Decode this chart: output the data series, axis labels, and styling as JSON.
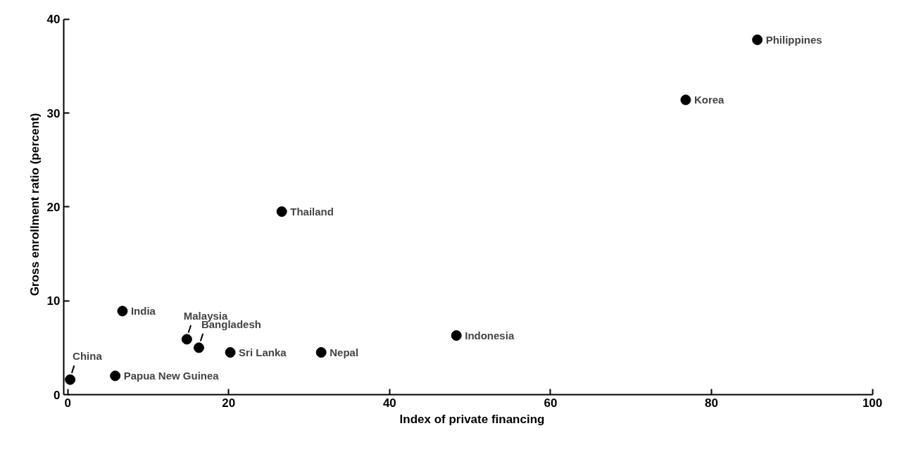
{
  "chart_data": {
    "type": "scatter",
    "xlabel": "Index of private financing",
    "ylabel": "Gross enrollment ratio (percent)",
    "x": [
      0.3,
      5.9,
      6.8,
      14.8,
      16.3,
      20.2,
      31.5,
      48.3,
      26.6,
      76.8,
      85.7
    ],
    "series": [
      {
        "color": "#000000",
        "values": [
          1.6,
          2.0,
          8.9,
          5.9,
          5.0,
          4.5,
          4.5,
          6.3,
          19.5,
          31.4,
          37.8
        ]
      }
    ],
    "annotations": [
      {
        "text": "China",
        "x": 0.3,
        "y": 1.6
      },
      {
        "text": "Papua New Guinea",
        "x": 5.9,
        "y": 2.0
      },
      {
        "text": "India",
        "x": 6.8,
        "y": 8.9
      },
      {
        "text": "Malaysia",
        "x": 14.8,
        "y": 5.9
      },
      {
        "text": "Bangladesh",
        "x": 16.3,
        "y": 5.0
      },
      {
        "text": "Sri Lanka",
        "x": 20.2,
        "y": 4.5
      },
      {
        "text": "Nepal",
        "x": 31.5,
        "y": 4.5
      },
      {
        "text": "Indonesia",
        "x": 48.3,
        "y": 6.3
      },
      {
        "text": "Thailand",
        "x": 26.6,
        "y": 19.5
      },
      {
        "text": "Korea",
        "x": 76.8,
        "y": 31.4
      },
      {
        "text": "Philippines",
        "x": 85.7,
        "y": 37.8
      }
    ],
    "xlim": [
      0,
      100
    ],
    "ylim": [
      0,
      40
    ],
    "xticks": [
      0,
      20,
      40,
      60,
      80,
      100
    ],
    "yticks": [
      0,
      10,
      20,
      30,
      40
    ],
    "grid": false,
    "marker": "circle"
  }
}
